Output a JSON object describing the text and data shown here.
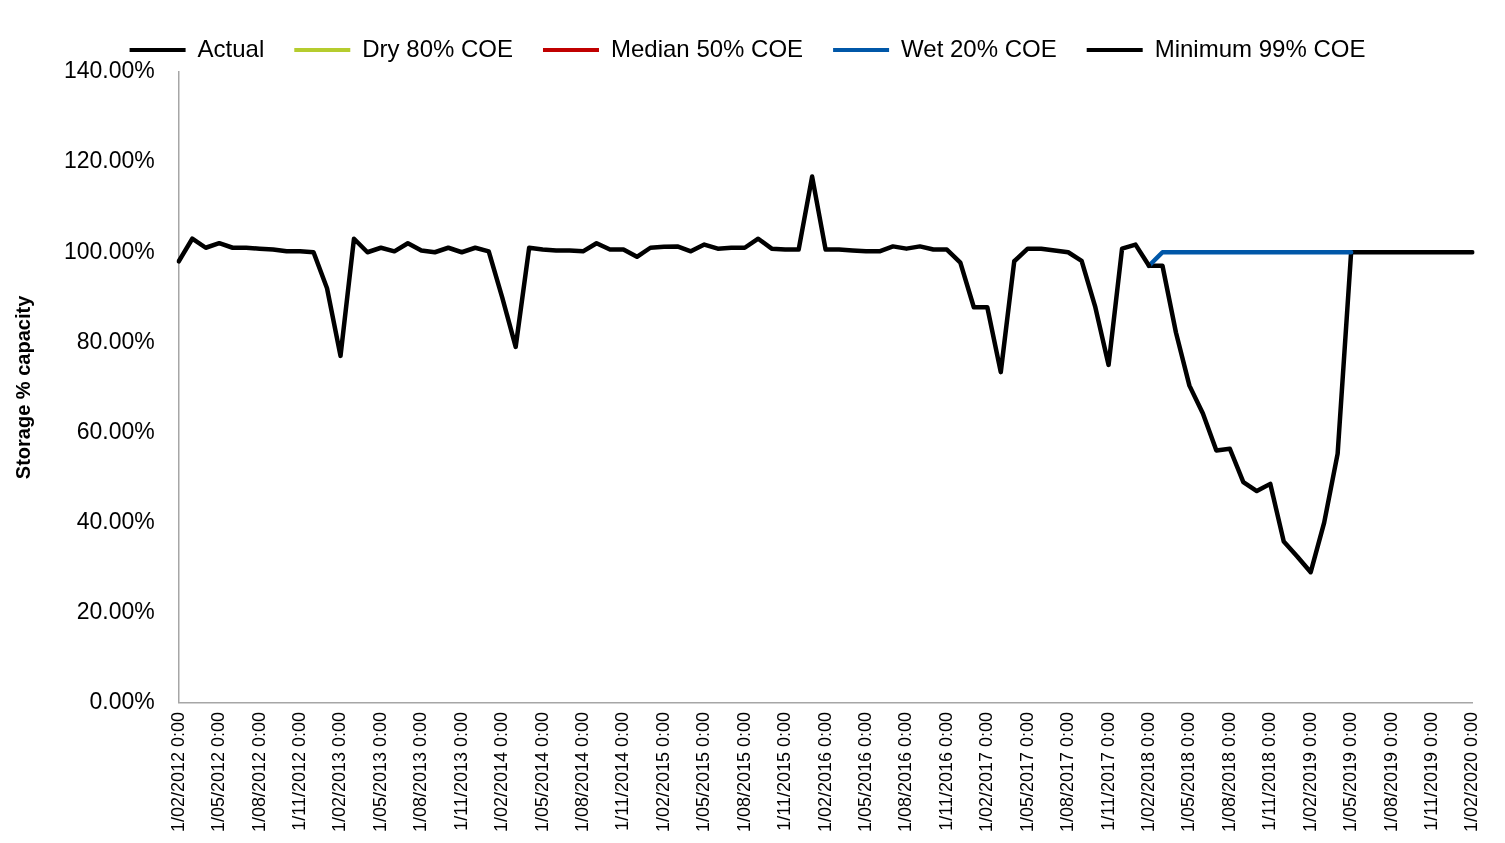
{
  "chart_data": {
    "type": "line",
    "ylabel": "Storage % capacity",
    "legend": "top",
    "grid": false,
    "marker": "none",
    "line_style": "solid",
    "ylim": [
      0,
      140
    ],
    "yticks": [
      {
        "value": 0,
        "label": "0.00%"
      },
      {
        "value": 20,
        "label": "20.00%"
      },
      {
        "value": 40,
        "label": "40.00%"
      },
      {
        "value": 60,
        "label": "60.00%"
      },
      {
        "value": 80,
        "label": "80.00%"
      },
      {
        "value": 100,
        "label": "100.00%"
      },
      {
        "value": 120,
        "label": "120.00%"
      },
      {
        "value": 140,
        "label": "140.00%"
      }
    ],
    "categories": [
      "1/02/2012 0:00",
      null,
      null,
      "1/05/2012 0:00",
      null,
      null,
      "1/08/2012 0:00",
      null,
      null,
      "1/11/2012 0:00",
      null,
      null,
      "1/02/2013 0:00",
      null,
      null,
      "1/05/2013 0:00",
      null,
      null,
      "1/08/2013 0:00",
      null,
      null,
      "1/11/2013 0:00",
      null,
      null,
      "1/02/2014 0:00",
      null,
      null,
      "1/05/2014 0:00",
      null,
      null,
      "1/08/2014 0:00",
      null,
      null,
      "1/11/2014 0:00",
      null,
      null,
      "1/02/2015 0:00",
      null,
      null,
      "1/05/2015 0:00",
      null,
      null,
      "1/08/2015 0:00",
      null,
      null,
      "1/11/2015 0:00",
      null,
      null,
      "1/02/2016 0:00",
      null,
      null,
      "1/05/2016 0:00",
      null,
      null,
      "1/08/2016 0:00",
      null,
      null,
      "1/11/2016 0:00",
      null,
      null,
      "1/02/2017 0:00",
      null,
      null,
      "1/05/2017 0:00",
      null,
      null,
      "1/08/2017 0:00",
      null,
      null,
      "1/11/2017 0:00",
      null,
      null,
      "1/02/2018 0:00",
      null,
      null,
      "1/05/2018 0:00",
      null,
      null,
      "1/08/2018 0:00",
      null,
      null,
      "1/11/2018 0:00",
      null,
      null,
      "1/02/2019 0:00",
      null,
      null,
      "1/05/2019 0:00",
      null,
      null,
      "1/08/2019 0:00",
      null,
      null,
      "1/11/2019 0:00",
      null,
      null,
      "1/02/2020 0:00"
    ],
    "series": [
      {
        "name": "Actual",
        "color": "#000000",
        "values": [
          98,
          103,
          101,
          102,
          101,
          101,
          100.8,
          100.6,
          100.2,
          100.2,
          100,
          92,
          77,
          103,
          100,
          101,
          100.2,
          102,
          100.4,
          100,
          101,
          100,
          101,
          100.2,
          90,
          79,
          101,
          100.6,
          100.4,
          100.4,
          100.2,
          102,
          100.6,
          100.6,
          99,
          101,
          101.2,
          101.3,
          100.2,
          101.7,
          100.8,
          101,
          101,
          103,
          100.8,
          100.6,
          100.6,
          116.8,
          100.6,
          100.6,
          100.4,
          100.2,
          100.2,
          101.3,
          100.8,
          101.3,
          100.6,
          100.6,
          97.7,
          87.8,
          87.8,
          73.4,
          98,
          100.8,
          100.8,
          100.4,
          100,
          98.1,
          88,
          75,
          100.8,
          101.7,
          97,
          null,
          null,
          null,
          null,
          null,
          null,
          null,
          null,
          null,
          null,
          null,
          null,
          null,
          null,
          null,
          null,
          null,
          null,
          null,
          null,
          null,
          null,
          null,
          null
        ]
      },
      {
        "name": "Dry 80% COE",
        "color": "#b5cc2e",
        "values": [
          null,
          null,
          null,
          null,
          null,
          null,
          null,
          null,
          null,
          null,
          null,
          null,
          null,
          null,
          null,
          null,
          null,
          null,
          null,
          null,
          null,
          null,
          null,
          null,
          null,
          null,
          null,
          null,
          null,
          null,
          null,
          null,
          null,
          null,
          null,
          null,
          null,
          null,
          null,
          null,
          null,
          null,
          null,
          null,
          null,
          null,
          null,
          null,
          null,
          null,
          null,
          null,
          null,
          null,
          null,
          null,
          null,
          null,
          null,
          null,
          null,
          null,
          null,
          null,
          null,
          null,
          null,
          null,
          null,
          null,
          null,
          null,
          null,
          null,
          null,
          null,
          null,
          null,
          null,
          null,
          null,
          null,
          null,
          null,
          null,
          null,
          null,
          null,
          null,
          null,
          null,
          null,
          null,
          null,
          null,
          null,
          null
        ]
      },
      {
        "name": "Median 50% COE",
        "color": "#c00000",
        "values": [
          null,
          null,
          null,
          null,
          null,
          null,
          null,
          null,
          null,
          null,
          null,
          null,
          null,
          null,
          null,
          null,
          null,
          null,
          null,
          null,
          null,
          null,
          null,
          null,
          null,
          null,
          null,
          null,
          null,
          null,
          null,
          null,
          null,
          null,
          null,
          null,
          null,
          null,
          null,
          null,
          null,
          null,
          null,
          null,
          null,
          null,
          null,
          null,
          null,
          null,
          null,
          null,
          null,
          null,
          null,
          null,
          null,
          null,
          null,
          null,
          null,
          null,
          null,
          null,
          null,
          null,
          null,
          null,
          null,
          null,
          null,
          null,
          null,
          null,
          null,
          null,
          null,
          null,
          null,
          null,
          null,
          null,
          null,
          null,
          null,
          null,
          null,
          null,
          null,
          null,
          null,
          null,
          null,
          null,
          null,
          null,
          null
        ]
      },
      {
        "name": "Wet 20% COE",
        "color": "#0057a8",
        "values": [
          null,
          null,
          null,
          null,
          null,
          null,
          null,
          null,
          null,
          null,
          null,
          null,
          null,
          null,
          null,
          null,
          null,
          null,
          null,
          null,
          null,
          null,
          null,
          null,
          null,
          null,
          null,
          null,
          null,
          null,
          null,
          null,
          null,
          null,
          null,
          null,
          null,
          null,
          null,
          null,
          null,
          null,
          null,
          null,
          null,
          null,
          null,
          null,
          null,
          null,
          null,
          null,
          null,
          null,
          null,
          null,
          null,
          null,
          null,
          null,
          null,
          null,
          null,
          null,
          null,
          null,
          null,
          null,
          null,
          null,
          null,
          null,
          97,
          100,
          100,
          100,
          100,
          100,
          100,
          100,
          100,
          100,
          100,
          100,
          100,
          100,
          100,
          100,
          null,
          null,
          null,
          null,
          null,
          null,
          null,
          null,
          null
        ]
      },
      {
        "name": "Minimum 99% COE",
        "color": "#000000",
        "values": [
          null,
          null,
          null,
          null,
          null,
          null,
          null,
          null,
          null,
          null,
          null,
          null,
          null,
          null,
          null,
          null,
          null,
          null,
          null,
          null,
          null,
          null,
          null,
          null,
          null,
          null,
          null,
          null,
          null,
          null,
          null,
          null,
          null,
          null,
          null,
          null,
          null,
          null,
          null,
          null,
          null,
          null,
          null,
          null,
          null,
          null,
          null,
          null,
          null,
          null,
          null,
          null,
          null,
          null,
          null,
          null,
          null,
          null,
          null,
          null,
          null,
          null,
          null,
          null,
          null,
          null,
          null,
          null,
          null,
          null,
          null,
          null,
          97,
          97,
          82.2,
          70.4,
          64.2,
          56,
          56.4,
          49,
          47,
          48.6,
          35.8,
          32.5,
          29,
          40,
          55.3,
          100,
          100,
          100,
          100,
          100,
          100,
          100,
          100,
          100,
          100
        ]
      }
    ]
  }
}
